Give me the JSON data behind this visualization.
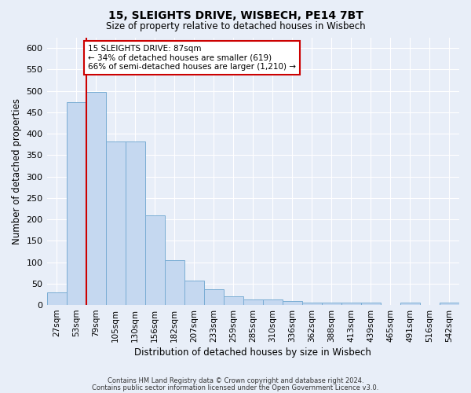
{
  "title1": "15, SLEIGHTS DRIVE, WISBECH, PE14 7BT",
  "title2": "Size of property relative to detached houses in Wisbech",
  "xlabel": "Distribution of detached houses by size in Wisbech",
  "ylabel": "Number of detached properties",
  "categories": [
    "27sqm",
    "53sqm",
    "79sqm",
    "105sqm",
    "130sqm",
    "156sqm",
    "182sqm",
    "207sqm",
    "233sqm",
    "259sqm",
    "285sqm",
    "310sqm",
    "336sqm",
    "362sqm",
    "388sqm",
    "413sqm",
    "439sqm",
    "465sqm",
    "491sqm",
    "516sqm",
    "542sqm"
  ],
  "values": [
    30,
    474,
    497,
    381,
    381,
    210,
    104,
    57,
    37,
    20,
    13,
    13,
    10,
    6,
    5,
    5,
    5,
    0,
    5,
    0,
    5
  ],
  "bar_color": "#c5d8f0",
  "bar_edge_color": "#7aadd4",
  "red_line_color": "#cc0000",
  "annotation_text": "15 SLEIGHTS DRIVE: 87sqm\n← 34% of detached houses are smaller (619)\n66% of semi-detached houses are larger (1,210) →",
  "annotation_box_color": "#ffffff",
  "annotation_box_edge_color": "#cc0000",
  "footer1": "Contains HM Land Registry data © Crown copyright and database right 2024.",
  "footer2": "Contains public sector information licensed under the Open Government Licence v3.0.",
  "bg_color": "#e8eef8",
  "grid_color": "#ffffff",
  "ylim": [
    0,
    625
  ],
  "yticks": [
    0,
    50,
    100,
    150,
    200,
    250,
    300,
    350,
    400,
    450,
    500,
    550,
    600
  ]
}
